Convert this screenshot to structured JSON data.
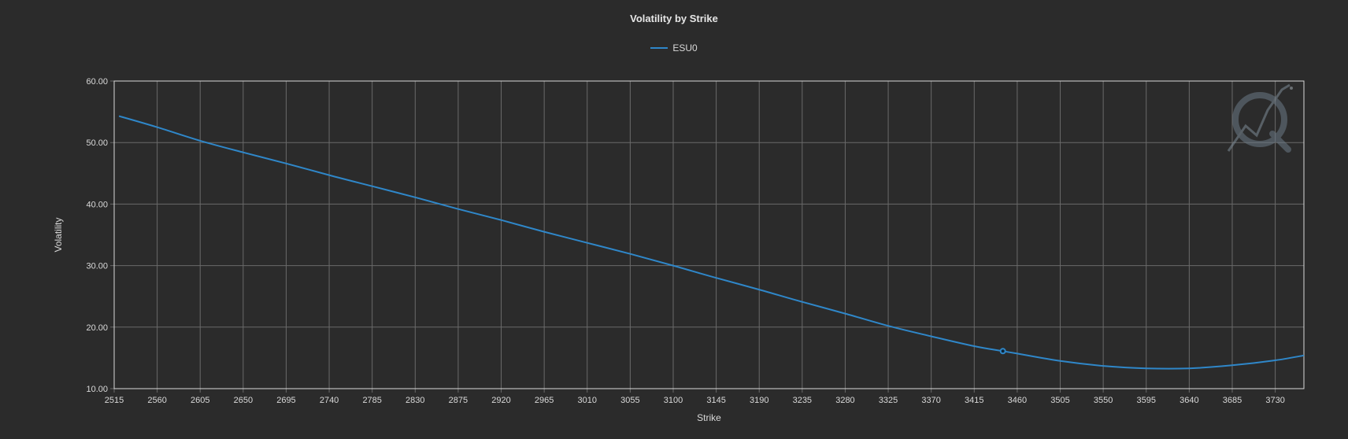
{
  "chart_data": {
    "type": "line",
    "title": "Volatility by Strike",
    "xlabel": "Strike",
    "ylabel": "Volatility",
    "xlim": [
      2515,
      3760
    ],
    "ylim": [
      10,
      60
    ],
    "x_ticks": [
      "2515",
      "2560",
      "2605",
      "2650",
      "2695",
      "2740",
      "2785",
      "2830",
      "2875",
      "2920",
      "2965",
      "3010",
      "3055",
      "3100",
      "3145",
      "3190",
      "3235",
      "3280",
      "3325",
      "3370",
      "3415",
      "3460",
      "3505",
      "3550",
      "3595",
      "3640",
      "3685",
      "3730"
    ],
    "y_ticks": [
      "10.00",
      "20.00",
      "30.00",
      "40.00",
      "50.00",
      "60.00"
    ],
    "grid": true,
    "legend_position": "top-center",
    "series": [
      {
        "name": "ESU0",
        "color": "#2f87c9",
        "x": [
          2520,
          2560,
          2605,
          2650,
          2695,
          2740,
          2785,
          2830,
          2875,
          2920,
          2965,
          3010,
          3055,
          3100,
          3145,
          3190,
          3235,
          3280,
          3325,
          3370,
          3415,
          3445,
          3460,
          3505,
          3550,
          3595,
          3640,
          3685,
          3730,
          3760
        ],
        "y": [
          54.3,
          52.5,
          50.3,
          48.4,
          46.6,
          44.7,
          42.9,
          41.1,
          39.2,
          37.4,
          35.5,
          33.7,
          31.9,
          30.0,
          28.0,
          26.1,
          24.1,
          22.2,
          20.2,
          18.5,
          16.9,
          16.1,
          15.7,
          14.5,
          13.7,
          13.3,
          13.3,
          13.8,
          14.6,
          15.4
        ]
      }
    ],
    "marker": {
      "x": 3445,
      "y": 16.1
    }
  }
}
